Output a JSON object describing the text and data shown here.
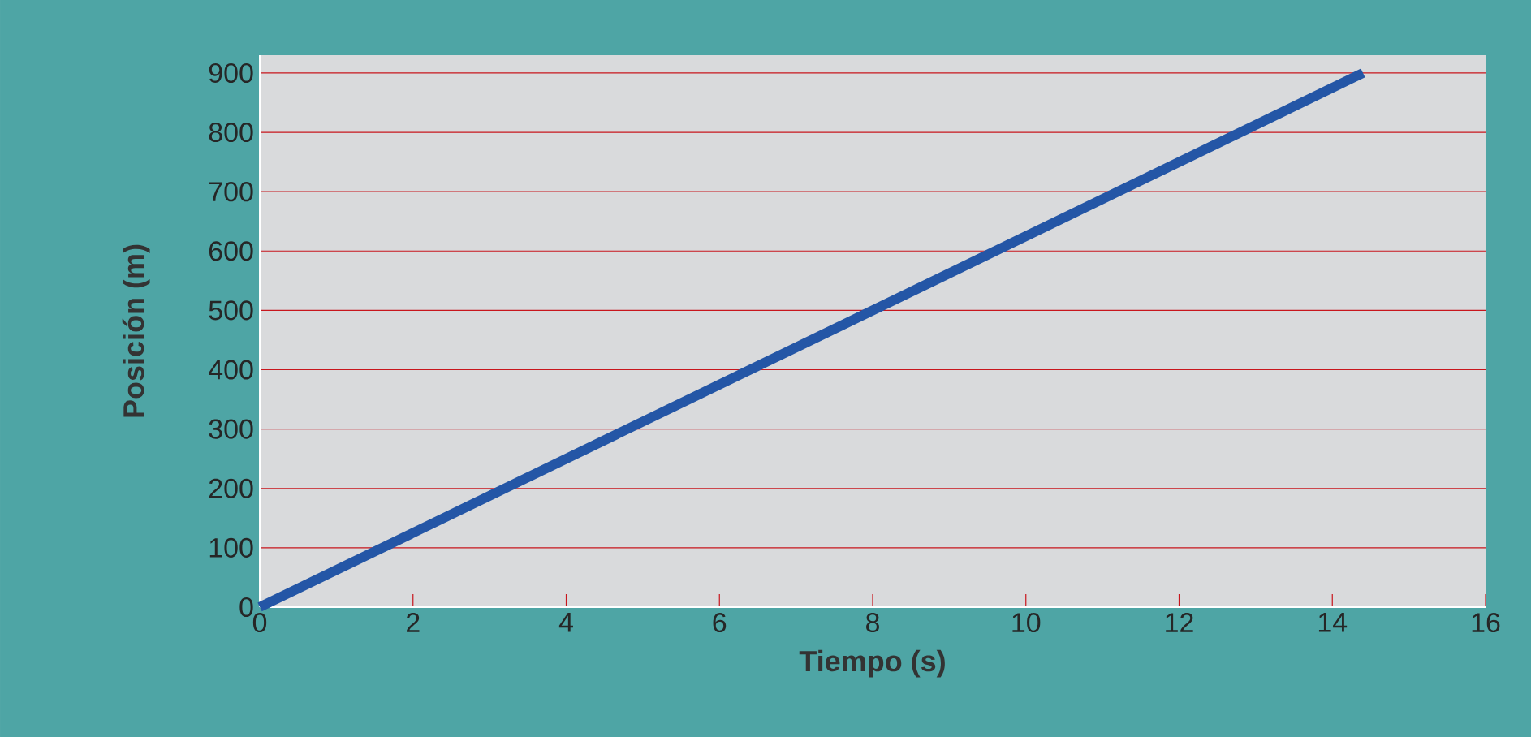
{
  "chart_data": {
    "type": "line",
    "xlabel": "Tiempo (s)",
    "ylabel": "Posición (m)",
    "x": [
      0,
      14.4
    ],
    "series": [
      {
        "color": "#2456a6",
        "values": [
          0,
          900
        ]
      }
    ],
    "xlim": [
      0,
      16
    ],
    "ylim": [
      0,
      930
    ],
    "xticks": [
      0,
      2,
      4,
      6,
      8,
      10,
      12,
      14,
      16
    ],
    "yticks": [
      0,
      100,
      200,
      300,
      400,
      500,
      600,
      700,
      800,
      900
    ],
    "grid": "y",
    "marker": "none",
    "line_style": "solid"
  }
}
